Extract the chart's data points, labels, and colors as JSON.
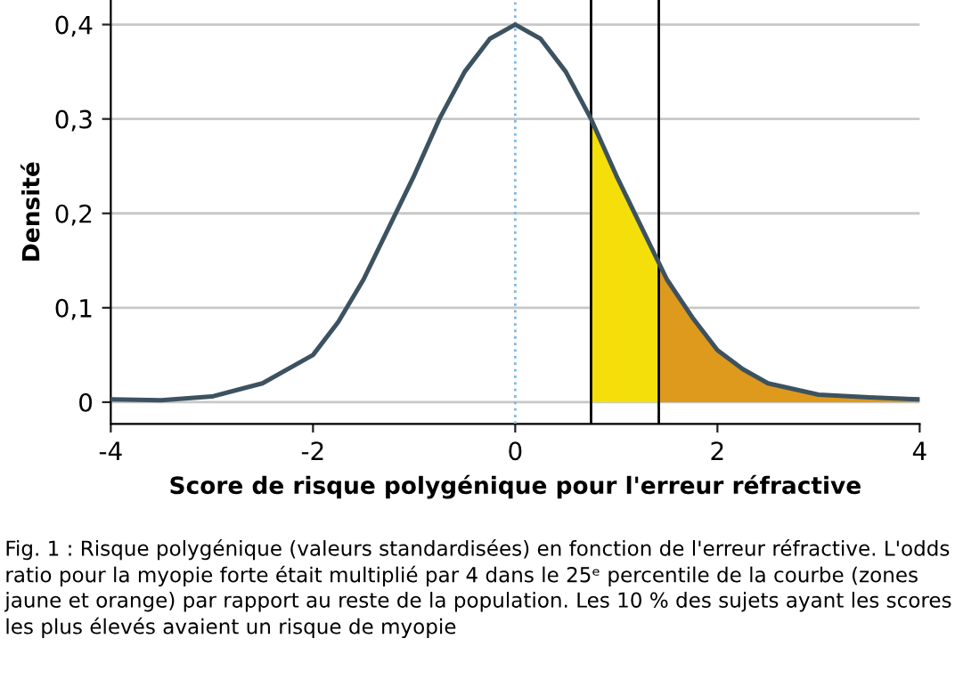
{
  "chart_data": {
    "type": "line",
    "xlabel": "Score de risque polygénique pour l'erreur réfractive",
    "ylabel": "Densité",
    "xlim": [
      -4,
      4
    ],
    "xticks": [
      -4,
      -2,
      0,
      2,
      4
    ],
    "ylim": [
      -0.023,
      0.426
    ],
    "yticks": [
      0,
      {
        "value": 0.1,
        "label": "0,1"
      },
      {
        "value": 0.2,
        "label": "0,2"
      },
      {
        "value": 0.3,
        "label": "0,3"
      },
      {
        "value": 0.4,
        "label": "0,4"
      }
    ],
    "grid": "y",
    "marker": "none",
    "line_style": "solid",
    "series": [
      {
        "type": "area",
        "color": "#f5df0a",
        "x": [
          0.75,
          1,
          1.25,
          1.42
        ],
        "values": [
          0.3,
          0.24,
          0.185,
          0.15
        ]
      },
      {
        "type": "area",
        "color": "#dd9a1c",
        "x": [
          1.42,
          1.5,
          1.75,
          2,
          2.25,
          2.5,
          3,
          3.5,
          4
        ],
        "values": [
          0.15,
          0.13,
          0.09,
          0.055,
          0.035,
          0.02,
          0.008,
          0.005,
          0.003
        ]
      },
      {
        "color": "#3d5260",
        "x": [
          -4,
          -3.5,
          -3,
          -2.5,
          -2,
          -1.75,
          -1.5,
          -1.25,
          -1,
          -0.75,
          -0.5,
          -0.25,
          0,
          0.25,
          0.5,
          0.75,
          1,
          1.25,
          1.5,
          1.75,
          2,
          2.25,
          2.5,
          3,
          3.5,
          4
        ],
        "values": [
          0.003,
          0.002,
          0.006,
          0.02,
          0.05,
          0.085,
          0.13,
          0.185,
          0.24,
          0.3,
          0.35,
          0.385,
          0.4,
          0.385,
          0.35,
          0.3,
          0.24,
          0.185,
          0.13,
          0.09,
          0.055,
          0.035,
          0.02,
          0.008,
          0.005,
          0.003
        ]
      }
    ],
    "ref_lines": [
      {
        "axis": "x",
        "value": 0,
        "color": "#7fb7e0",
        "line_style": "dotted"
      },
      {
        "axis": "x",
        "value": 0.75,
        "color": "#000000",
        "line_style": "solid"
      },
      {
        "axis": "x",
        "value": 1.42,
        "color": "#000000",
        "line_style": "solid"
      }
    ],
    "annotations": [
      "Fig. 1 : Risque polygénique (valeurs standardisées) en fonction de l'erreur réfractive. L'odds ratio pour la myopie forte était multiplié par 4 dans le 25ᵉ percentile de la courbe (zones jaune et orange) par rapport au reste de la population. Les 10 % des sujets ayant les scores les plus élevés avaient un risque de myopie"
    ]
  }
}
